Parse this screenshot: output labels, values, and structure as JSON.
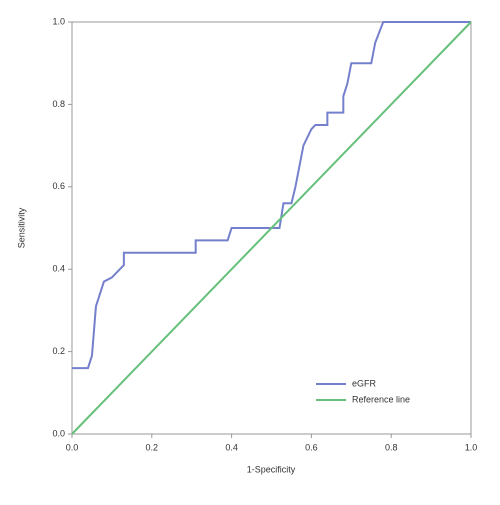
{
  "chart_data": {
    "type": "line",
    "xlabel": "1-Specificity",
    "ylabel": "Sensitivity",
    "xlim": [
      0,
      1
    ],
    "ylim": [
      0,
      1
    ],
    "xticks": [
      {
        "value": 0,
        "label": "0.0"
      },
      0.2,
      0.4,
      0.6,
      0.8,
      {
        "value": 1,
        "label": "1.0"
      }
    ],
    "yticks": [
      {
        "value": 0,
        "label": "0.0"
      },
      0.2,
      0.4,
      0.6,
      0.8,
      {
        "value": 1,
        "label": "1.0"
      }
    ],
    "legend": "lower right",
    "series": [
      {
        "name": "eGFR",
        "color": "#7480cc",
        "x": [
          0,
          0.04,
          0.05,
          0.06,
          0.07,
          0.08,
          0.1,
          0.12,
          0.13,
          0.13,
          0.31,
          0.31,
          0.39,
          0.4,
          0.52,
          0.53,
          0.55,
          0.56,
          0.57,
          0.58,
          0.6,
          0.61,
          0.64,
          0.64,
          0.68,
          0.68,
          0.69,
          0.7,
          0.75,
          0.76,
          0.78,
          1
        ],
        "values": [
          0.16,
          0.16,
          0.19,
          0.31,
          0.34,
          0.37,
          0.38,
          0.4,
          0.41,
          0.44,
          0.44,
          0.47,
          0.47,
          0.5,
          0.5,
          0.56,
          0.56,
          0.6,
          0.65,
          0.7,
          0.74,
          0.75,
          0.75,
          0.78,
          0.78,
          0.82,
          0.85,
          0.9,
          0.9,
          0.95,
          1,
          1
        ]
      },
      {
        "name": "Reference line",
        "color": "#66c07a",
        "x": [
          0,
          1
        ],
        "values": [
          0,
          1
        ]
      }
    ]
  }
}
